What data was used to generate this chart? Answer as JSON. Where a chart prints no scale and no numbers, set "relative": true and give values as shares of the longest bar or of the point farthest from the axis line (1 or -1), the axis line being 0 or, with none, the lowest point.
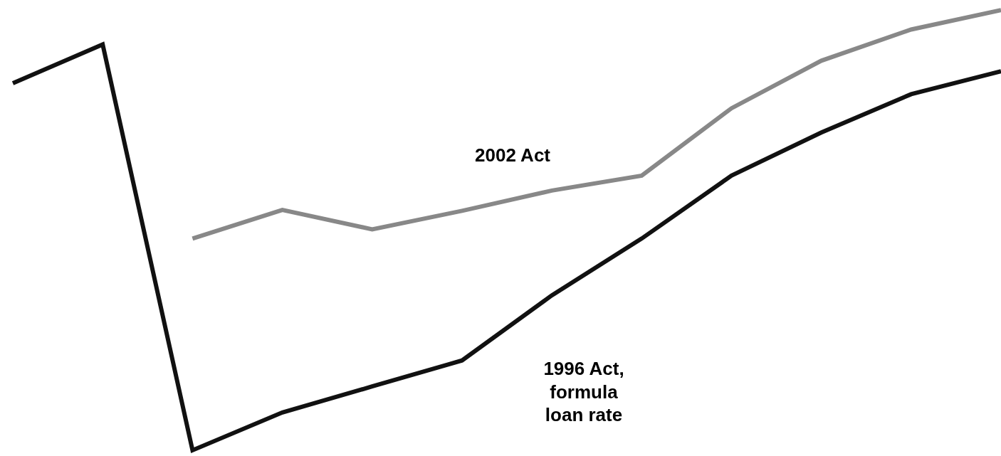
{
  "chart_data": {
    "type": "line",
    "relative": true,
    "legend": false,
    "categories": [
      null,
      null,
      null,
      null,
      null,
      null,
      null,
      null,
      null,
      null,
      null,
      null
    ],
    "series": [
      {
        "name": "2002 Act",
        "color": "#888888",
        "values": [
          null,
          null,
          0.481,
          0.546,
          0.502,
          0.544,
          0.59,
          0.624,
          0.777,
          0.885,
          0.956,
          1
        ]
      },
      {
        "name": "1996 Act, formula loan rate",
        "color": "#111111",
        "values": [
          0.834,
          0.922,
          0,
          0.086,
          0.145,
          0.204,
          0.352,
          0.481,
          0.624,
          0.722,
          0.809,
          0.861
        ]
      }
    ]
  }
}
